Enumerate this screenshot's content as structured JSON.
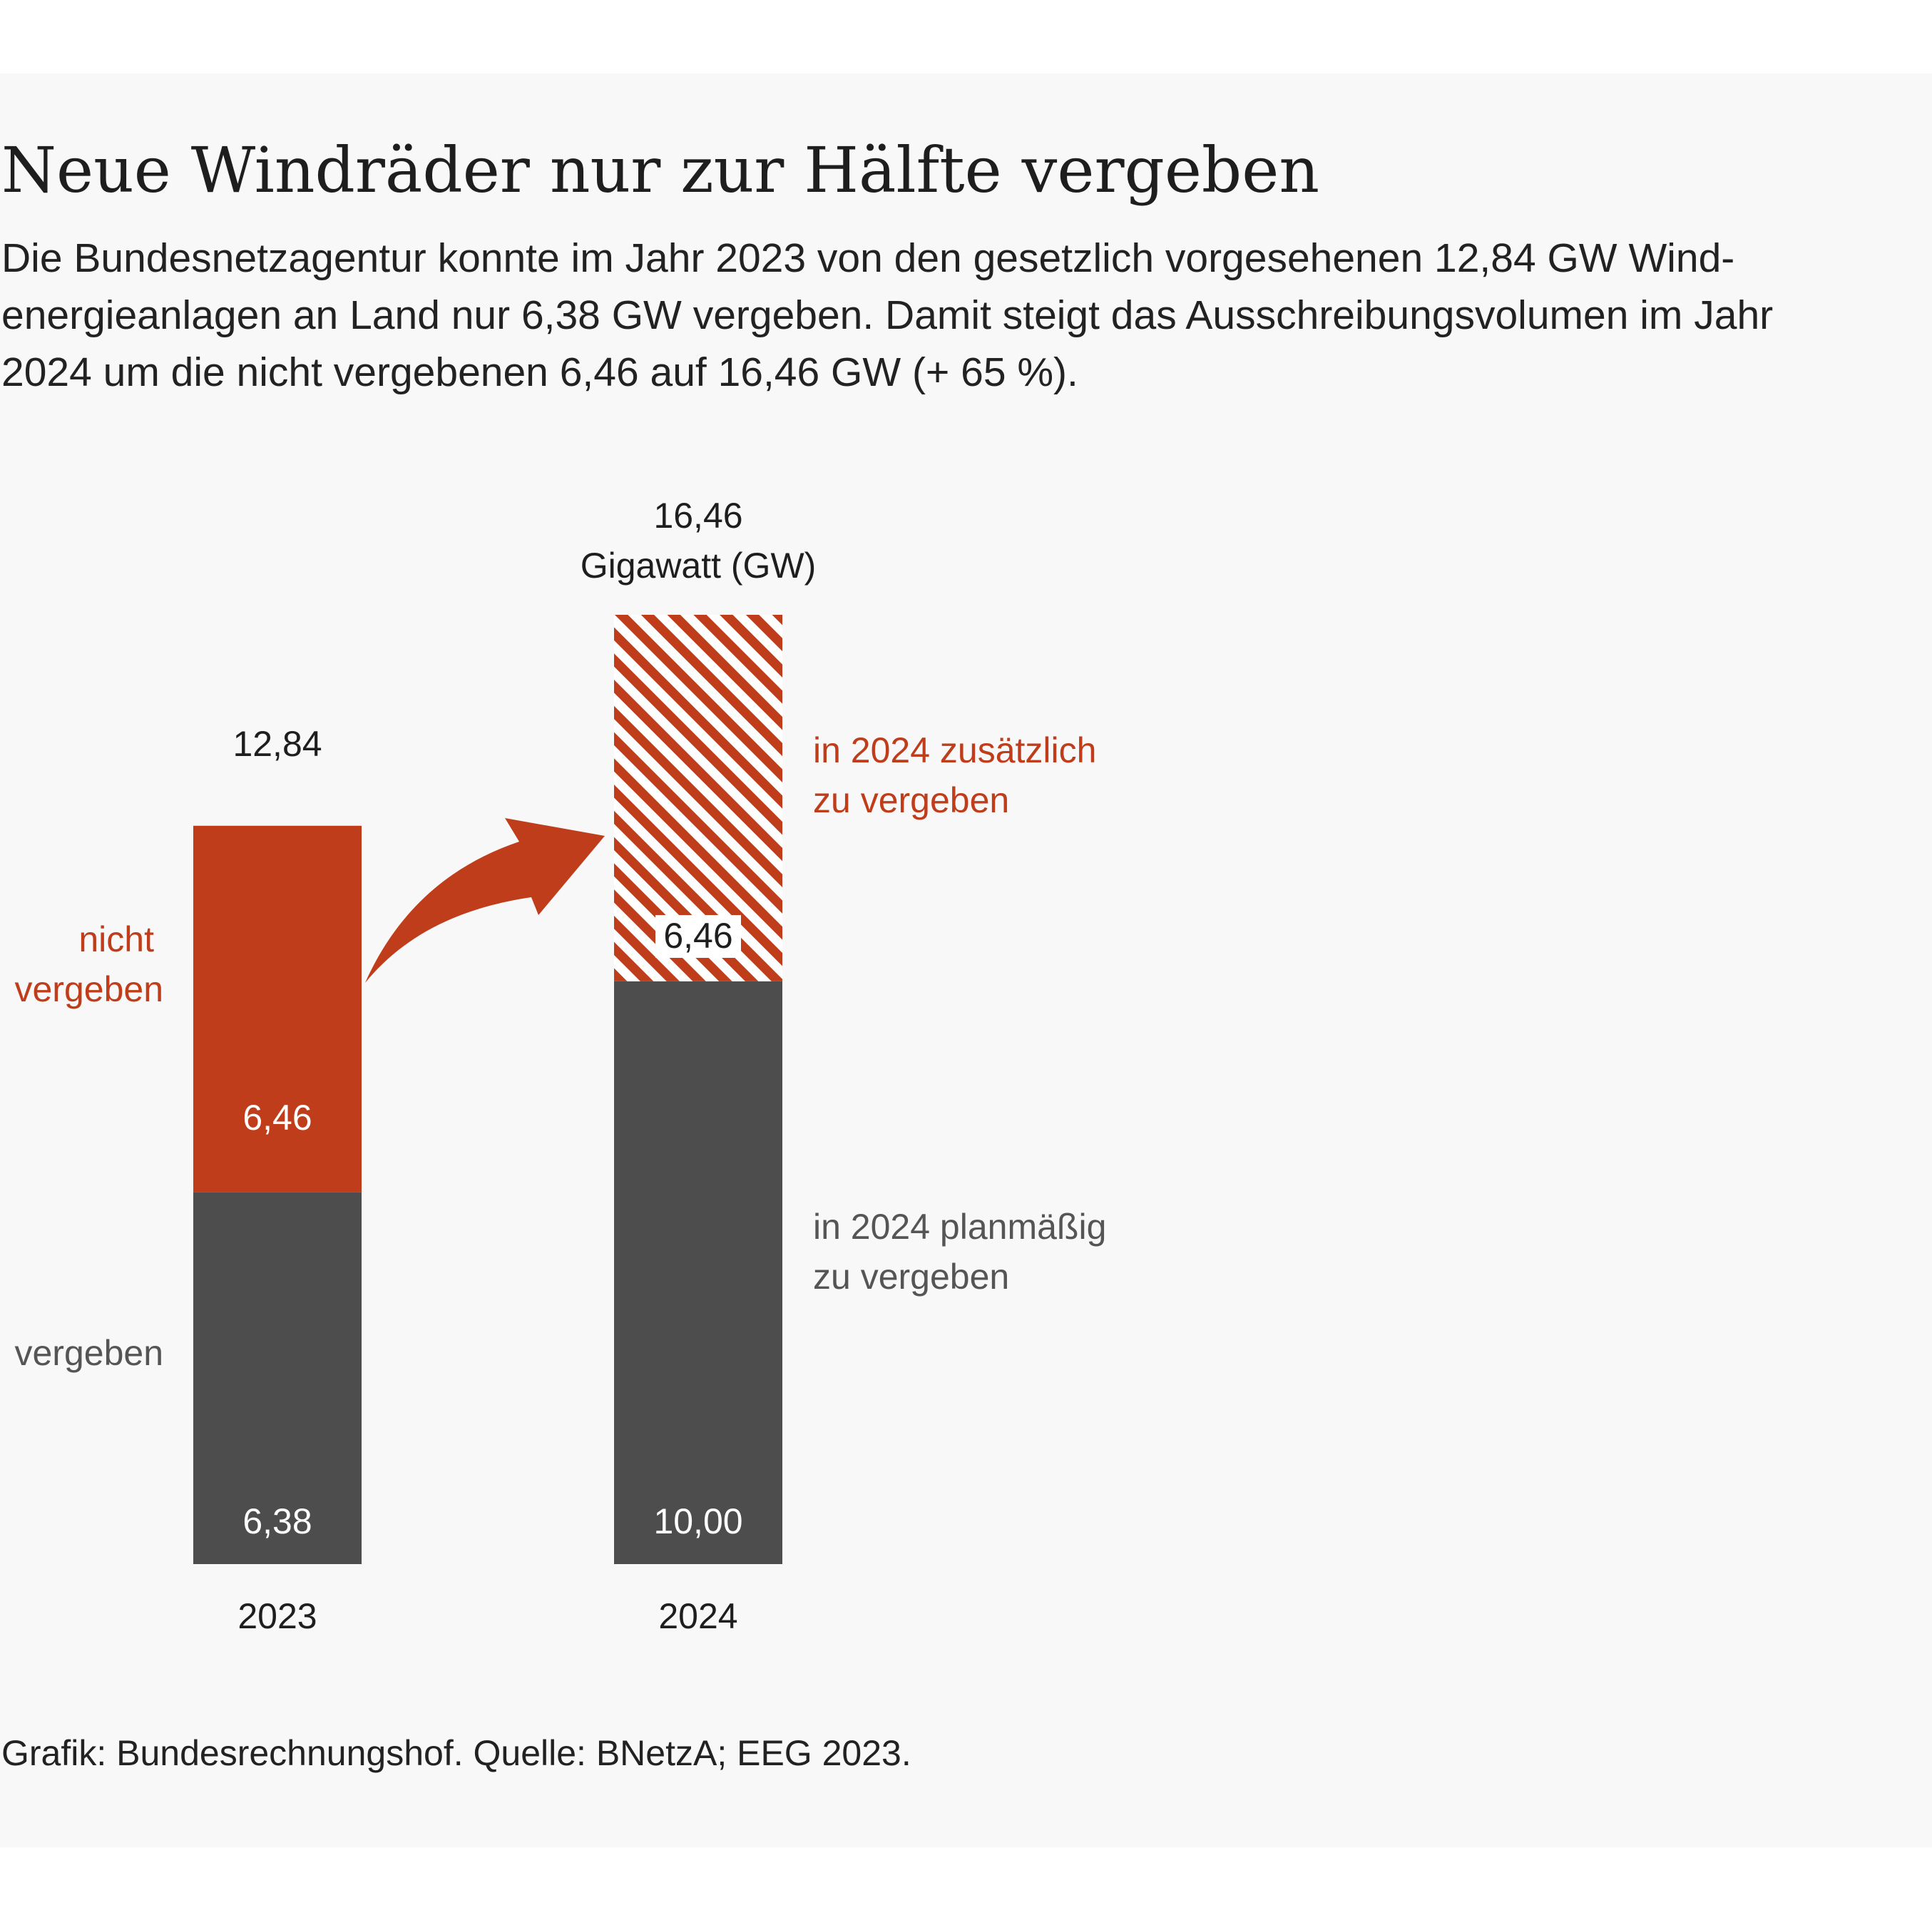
{
  "colors": {
    "background": "#f7f8f7",
    "accent_red": "#bf3d1b",
    "dark_gray": "#4d4d4d",
    "label_gray": "#555555",
    "text": "#1e1e1e"
  },
  "title": "Neue Windräder nur zur Hälfte vergeben",
  "subtitle_lines": [
    "Die Bundesnetzagentur konnte im Jahr 2023 von den gesetzlich vorgesehenen 12,84 GW Wind-",
    "energieanlagen an Land nur 6,38 GW vergeben. Damit steigt das Ausschreibungsvolumen im Jahr",
    "2024 um die nicht vergebenen 6,46 auf 16,46 GW (+ 65 %)."
  ],
  "source": "Grafik: Bundesrechnungshof. Quelle: BNetzA; EEG 2023.",
  "chart_data": {
    "type": "bar",
    "stacked": true,
    "categories": [
      "2023",
      "2024"
    ],
    "series": [
      {
        "name": "vergeben",
        "values": [
          6.38,
          10.0
        ],
        "labels": [
          "6,38",
          "10,00"
        ],
        "color": "#4d4d4d"
      },
      {
        "name": "nicht vergeben",
        "values": [
          6.46,
          6.46
        ],
        "labels": [
          "6,46",
          "6,46"
        ],
        "color": "#bf3d1b",
        "pattern": [
          "solid",
          "hatched"
        ]
      }
    ],
    "totals": [
      12.84,
      16.46
    ],
    "total_labels": [
      [
        "12,84"
      ],
      [
        "16,46",
        "Gigawatt (GW)"
      ]
    ],
    "annotations": {
      "left_red": [
        "nicht",
        "vergeben"
      ],
      "left_gray": [
        "vergeben"
      ],
      "right_red": [
        "in 2024 zusätzlich",
        "zu vergeben"
      ],
      "right_gray": [
        "in 2024 planmäßig",
        "zu vergeben"
      ]
    },
    "arrow": "from 2023 nicht vergeben to 2024 zusätzlich",
    "ylim": [
      0,
      16.46
    ],
    "grid": false,
    "legend": "none",
    "xlabel": "",
    "ylabel": ""
  }
}
